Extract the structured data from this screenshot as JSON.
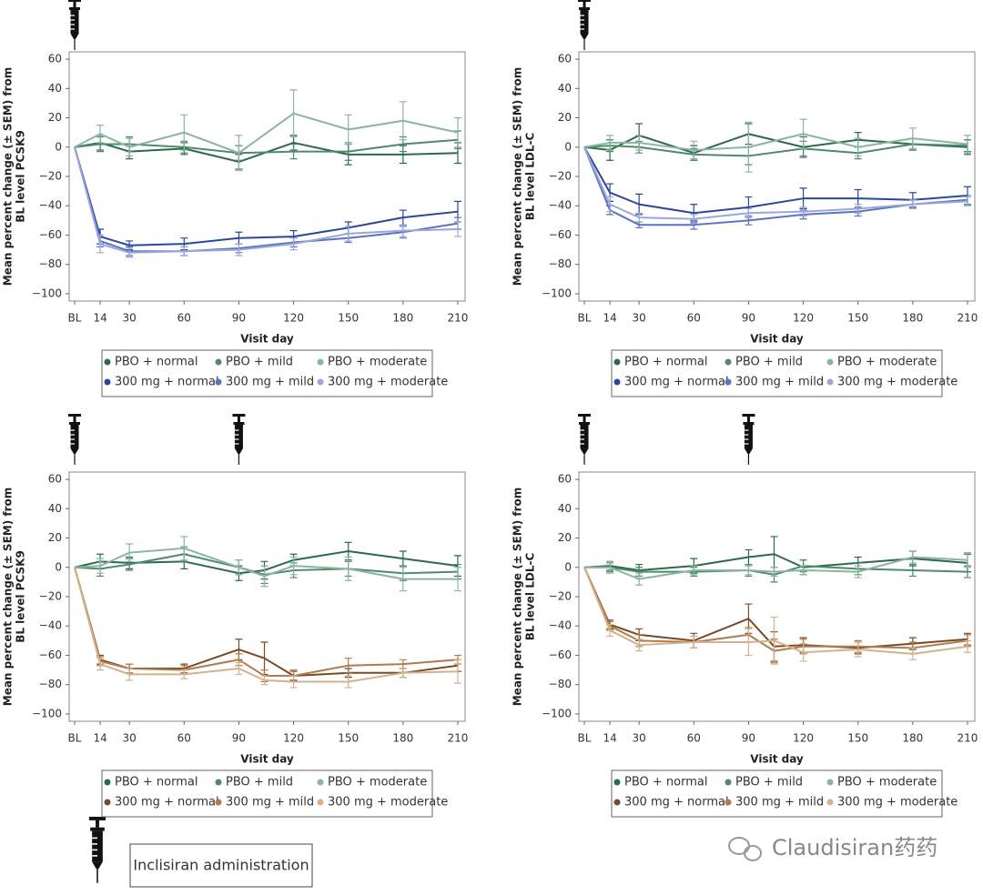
{
  "chart_data": [
    {
      "type": "line",
      "xlabel": "Visit day",
      "ylabel": [
        "Mean percent change (± SEM) from",
        "BL level PCSK9"
      ],
      "x": [
        0,
        14,
        30,
        60,
        90,
        120,
        150,
        180,
        210
      ],
      "xlim": [
        -3,
        214
      ],
      "xticks": [
        {
          "value": 0,
          "label": "BL"
        },
        14,
        30,
        60,
        90,
        120,
        150,
        180,
        210
      ],
      "ylim": [
        -105,
        65
      ],
      "yticks": [
        60,
        40,
        20,
        0,
        {
          "value": -20,
          "label": "−20"
        },
        {
          "value": -40,
          "label": "−40"
        },
        {
          "value": -60,
          "label": "−60"
        },
        {
          "value": -80,
          "label": "−80"
        },
        {
          "value": -100,
          "label": "−100"
        }
      ],
      "dosing_days": [
        0
      ],
      "series": [
        {
          "name": "PBO + normal",
          "color": "#2b6a4c",
          "values": [
            0,
            3,
            -3,
            -1,
            -10,
            3,
            -5,
            -5,
            -4
          ],
          "errors": [
            0,
            5,
            5,
            4,
            5,
            5,
            7,
            6,
            7
          ]
        },
        {
          "name": "PBO + mild",
          "color": "#4e8a6c",
          "values": [
            0,
            2,
            2,
            0,
            -4,
            -3,
            -3,
            2,
            5
          ],
          "errors": [
            0,
            5,
            5,
            4,
            5,
            5,
            6,
            5,
            6
          ]
        },
        {
          "name": "PBO + moderate",
          "color": "#8db4a0",
          "values": [
            0,
            9,
            0,
            10,
            -4,
            23,
            12,
            18,
            10
          ],
          "errors": [
            0,
            6,
            6,
            12,
            12,
            16,
            10,
            13,
            10
          ]
        },
        {
          "name": "300 mg + normal",
          "color": "#2b4898",
          "values": [
            0,
            -61,
            -67,
            -66,
            -62,
            -61,
            -55,
            -48,
            -44
          ],
          "errors": [
            0,
            5,
            3,
            4,
            4,
            4,
            4,
            5,
            7
          ]
        },
        {
          "name": "300 mg + mild",
          "color": "#5a74be",
          "values": [
            0,
            -64,
            -71,
            -71,
            -69,
            -65,
            -62,
            -58,
            -52
          ],
          "errors": [
            0,
            4,
            3,
            3,
            3,
            3,
            3,
            4,
            4
          ]
        },
        {
          "name": "300 mg + moderate",
          "color": "#9ba7d8",
          "values": [
            0,
            -66,
            -72,
            -71,
            -70,
            -66,
            -59,
            -57,
            -56
          ],
          "errors": [
            0,
            6,
            3,
            3,
            4,
            4,
            5,
            4,
            5
          ]
        }
      ]
    },
    {
      "type": "line",
      "xlabel": "Visit day",
      "ylabel": [
        "Mean percent change (± SEM) from",
        "BL level LDL-C"
      ],
      "x": [
        0,
        14,
        30,
        60,
        90,
        120,
        150,
        180,
        210
      ],
      "xlim": [
        -3,
        214
      ],
      "xticks": [
        {
          "value": 0,
          "label": "BL"
        },
        14,
        30,
        60,
        90,
        120,
        150,
        180,
        210
      ],
      "ylim": [
        -105,
        65
      ],
      "yticks": [
        60,
        40,
        20,
        0,
        {
          "value": -20,
          "label": "−20"
        },
        {
          "value": -40,
          "label": "−40"
        },
        {
          "value": -60,
          "label": "−60"
        },
        {
          "value": -80,
          "label": "−80"
        },
        {
          "value": -100,
          "label": "−100"
        }
      ],
      "dosing_days": [
        0
      ],
      "series": [
        {
          "name": "PBO + normal",
          "color": "#2b6a4c",
          "values": [
            0,
            -2,
            8,
            -4,
            9,
            0,
            5,
            2,
            0
          ],
          "errors": [
            0,
            7,
            8,
            5,
            7,
            7,
            5,
            4,
            5
          ]
        },
        {
          "name": "PBO + mild",
          "color": "#4e8a6c",
          "values": [
            0,
            1,
            0,
            -5,
            -6,
            -1,
            -4,
            2,
            1
          ],
          "errors": [
            0,
            4,
            4,
            4,
            6,
            5,
            4,
            4,
            4
          ]
        },
        {
          "name": "PBO + moderate",
          "color": "#8db4a0",
          "values": [
            0,
            3,
            3,
            -2,
            0,
            9,
            0,
            6,
            2
          ],
          "errors": [
            0,
            5,
            5,
            6,
            17,
            10,
            6,
            7,
            6
          ]
        },
        {
          "name": "300 mg + normal",
          "color": "#2b4898",
          "values": [
            0,
            -31,
            -39,
            -45,
            -41,
            -35,
            -35,
            -36,
            -33
          ],
          "errors": [
            0,
            6,
            7,
            6,
            7,
            7,
            6,
            5,
            6
          ]
        },
        {
          "name": "300 mg + mild",
          "color": "#5a74be",
          "values": [
            0,
            -43,
            -53,
            -53,
            -50,
            -46,
            -44,
            -39,
            -36
          ],
          "errors": [
            0,
            3,
            2,
            3,
            3,
            3,
            3,
            3,
            3
          ]
        },
        {
          "name": "300 mg + moderate",
          "color": "#9ba7d8",
          "values": [
            0,
            -39,
            -48,
            -49,
            -45,
            -44,
            -42,
            -39,
            -37
          ],
          "errors": [
            0,
            5,
            3,
            3,
            3,
            3,
            3,
            3,
            3
          ]
        }
      ]
    },
    {
      "type": "line",
      "xlabel": "Visit day",
      "ylabel": [
        "Mean percent change (± SEM) from",
        "BL level PCSK9"
      ],
      "x": [
        0,
        14,
        30,
        60,
        90,
        104,
        120,
        150,
        180,
        210
      ],
      "xlim": [
        -3,
        214
      ],
      "xticks": [
        {
          "value": 0,
          "label": "BL"
        },
        14,
        30,
        60,
        90,
        120,
        150,
        180,
        210
      ],
      "ylim": [
        -105,
        65
      ],
      "yticks": [
        60,
        40,
        20,
        0,
        {
          "value": -20,
          "label": "−20"
        },
        {
          "value": -40,
          "label": "−40"
        },
        {
          "value": -60,
          "label": "−60"
        },
        {
          "value": -80,
          "label": "−80"
        },
        {
          "value": -100,
          "label": "−100"
        }
      ],
      "dosing_days": [
        0,
        90
      ],
      "series": [
        {
          "name": "PBO + normal",
          "color": "#2b6a4c",
          "values": [
            0,
            4,
            3,
            4,
            -4,
            -2,
            5,
            11,
            6,
            1
          ],
          "errors": [
            0,
            5,
            4,
            5,
            5,
            6,
            4,
            6,
            5,
            7
          ]
        },
        {
          "name": "PBO + mild",
          "color": "#4e8a6c",
          "values": [
            0,
            -1,
            2,
            9,
            0,
            -5,
            -2,
            -1,
            -4,
            -3
          ],
          "errors": [
            0,
            5,
            4,
            5,
            5,
            6,
            5,
            5,
            5,
            5
          ]
        },
        {
          "name": "PBO + moderate",
          "color": "#8db4a0",
          "values": [
            0,
            1,
            10,
            13,
            0,
            -6,
            1,
            -1,
            -8,
            -8
          ],
          "errors": [
            0,
            5,
            6,
            8,
            5,
            7,
            6,
            8,
            8,
            8
          ]
        },
        {
          "name": "300 mg + normal",
          "color": "#7a4a25",
          "values": [
            0,
            -63,
            -69,
            -69,
            -56,
            -62,
            -74,
            -72,
            -72,
            -67
          ],
          "errors": [
            0,
            3,
            3,
            3,
            7,
            11,
            3,
            3,
            3,
            4
          ]
        },
        {
          "name": "300 mg + mild",
          "color": "#b07c4d",
          "values": [
            0,
            -64,
            -69,
            -70,
            -63,
            -74,
            -74,
            -67,
            -66,
            -63
          ],
          "errors": [
            0,
            3,
            3,
            3,
            4,
            4,
            4,
            5,
            3,
            3
          ]
        },
        {
          "name": "300 mg + moderate",
          "color": "#d2b28c",
          "values": [
            0,
            -66,
            -73,
            -73,
            -69,
            -77,
            -78,
            -78,
            -72,
            -71
          ],
          "errors": [
            0,
            4,
            4,
            3,
            4,
            3,
            4,
            4,
            3,
            8
          ]
        }
      ]
    },
    {
      "type": "line",
      "xlabel": "Visit day",
      "ylabel": [
        "Mean percent change (± SEM) from",
        "BL level LDL-C"
      ],
      "x": [
        0,
        14,
        30,
        60,
        90,
        104,
        120,
        150,
        180,
        210
      ],
      "xlim": [
        -3,
        214
      ],
      "xticks": [
        {
          "value": 0,
          "label": "BL"
        },
        14,
        30,
        60,
        90,
        120,
        150,
        180,
        210
      ],
      "ylim": [
        -105,
        65
      ],
      "yticks": [
        60,
        40,
        20,
        0,
        {
          "value": -20,
          "label": "−20"
        },
        {
          "value": -40,
          "label": "−40"
        },
        {
          "value": -60,
          "label": "−60"
        },
        {
          "value": -80,
          "label": "−80"
        },
        {
          "value": -100,
          "label": "−100"
        }
      ],
      "dosing_days": [
        0,
        90
      ],
      "series": [
        {
          "name": "PBO + normal",
          "color": "#2b6a4c",
          "values": [
            0,
            1,
            -2,
            1,
            7,
            9,
            0,
            3,
            6,
            3
          ],
          "errors": [
            0,
            3,
            4,
            5,
            5,
            12,
            5,
            4,
            5,
            6
          ]
        },
        {
          "name": "PBO + mild",
          "color": "#4e8a6c",
          "values": [
            0,
            0,
            -3,
            -3,
            -2,
            -5,
            1,
            -1,
            -2,
            -3
          ],
          "errors": [
            0,
            3,
            3,
            3,
            4,
            5,
            4,
            4,
            4,
            4
          ]
        },
        {
          "name": "PBO + moderate",
          "color": "#8db4a0",
          "values": [
            0,
            0,
            -8,
            -2,
            -2,
            -3,
            -2,
            -3,
            7,
            5
          ],
          "errors": [
            0,
            4,
            4,
            3,
            3,
            3,
            3,
            4,
            4,
            5
          ]
        },
        {
          "name": "300 mg + normal",
          "color": "#7a4a25",
          "values": [
            0,
            -39,
            -46,
            -50,
            -35,
            -54,
            -53,
            -55,
            -52,
            -49
          ],
          "errors": [
            0,
            3,
            4,
            5,
            10,
            10,
            5,
            4,
            4,
            4
          ]
        },
        {
          "name": "300 mg + mild",
          "color": "#b07c4d",
          "values": [
            0,
            -40,
            -50,
            -51,
            -46,
            -57,
            -54,
            -54,
            -55,
            -50
          ],
          "errors": [
            0,
            3,
            4,
            4,
            5,
            8,
            5,
            4,
            4,
            4
          ]
        },
        {
          "name": "300 mg + moderate",
          "color": "#d2b28c",
          "values": [
            0,
            -43,
            -53,
            -51,
            -51,
            -50,
            -58,
            -56,
            -59,
            -54
          ],
          "errors": [
            0,
            4,
            4,
            4,
            9,
            16,
            6,
            5,
            4,
            4
          ]
        }
      ]
    }
  ],
  "key_label": "Inclisiran administration",
  "watermark": "Claudisiran药药"
}
